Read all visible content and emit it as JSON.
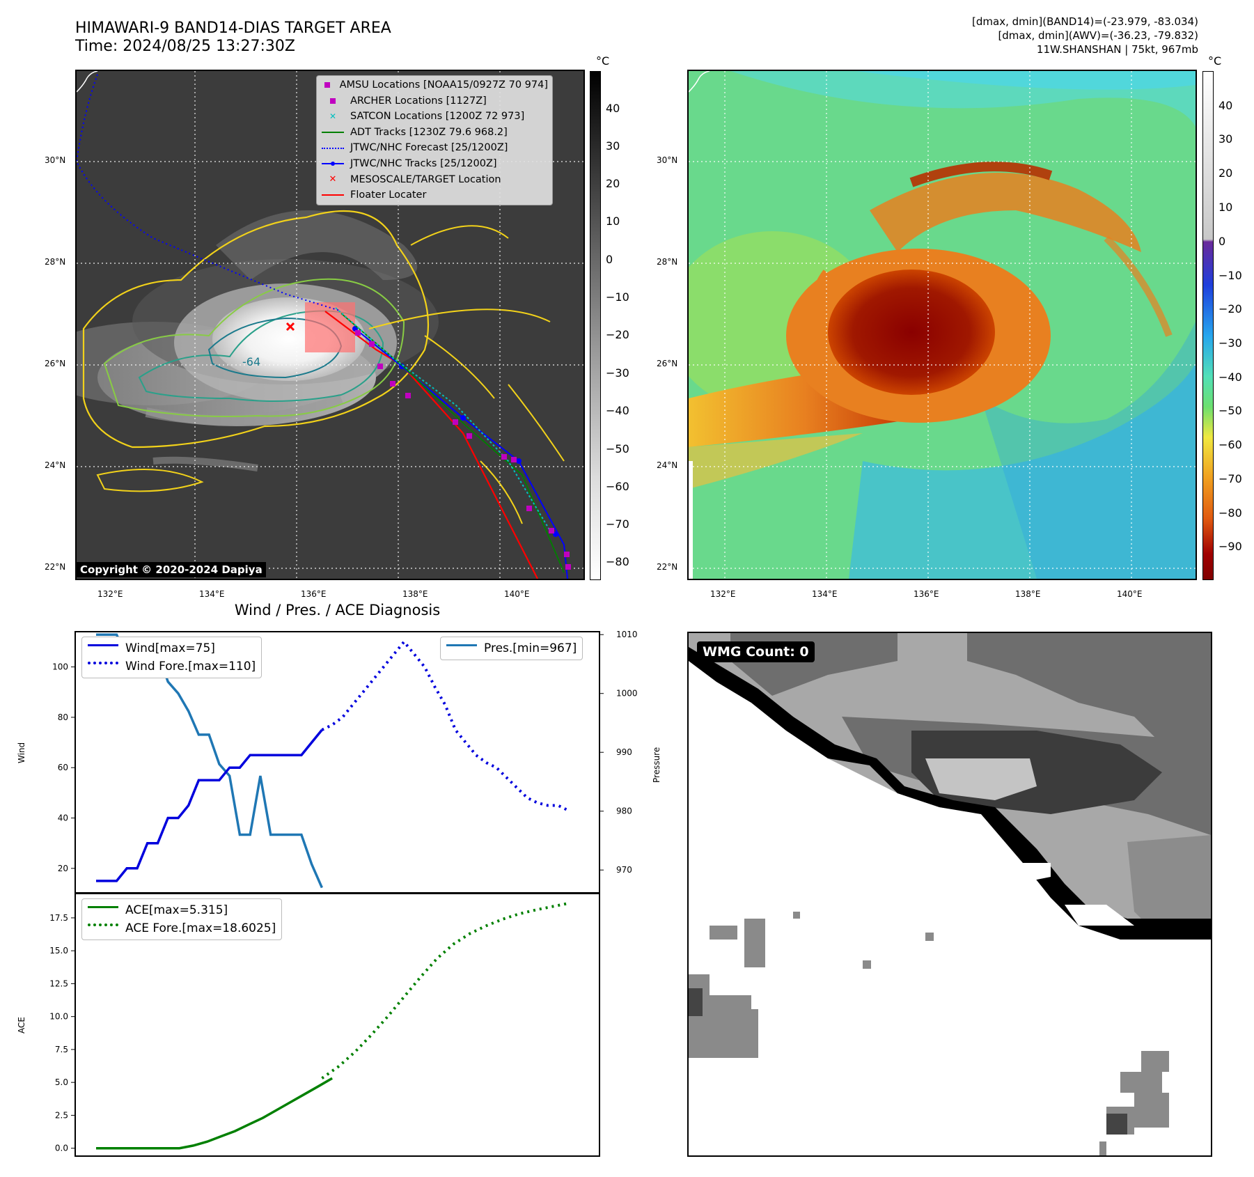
{
  "header": {
    "title_line1": "HIMAWARI-9 BAND14-DIAS TARGET AREA",
    "title_line2": "Time: 2024/08/25 13:27:30Z",
    "right_line1": "[dmax, dmin](BAND14)=(-23.979, -83.034)",
    "right_line2": "[dmax, dmin](AWV)=(-36.23, -79.832)",
    "right_line3": "11W.SHANSHAN | 75kt, 967mb"
  },
  "map": {
    "lon_labels": [
      "132°E",
      "134°E",
      "136°E",
      "138°E",
      "140°E"
    ],
    "lat_labels": [
      "30°N",
      "28°N",
      "26°N",
      "24°N",
      "22°N"
    ],
    "contour_label": "-64",
    "copyright": "Copyright © 2020-2024 Dapiya",
    "legend": [
      {
        "label": "AMSU Locations [NOAA15/0927Z 70 974]",
        "color": "#c000c0",
        "marker": "square"
      },
      {
        "label": "ARCHER Locations [1127Z]",
        "color": "#c000c0",
        "marker": "square"
      },
      {
        "label": "SATCON Locations [1200Z 72 973]",
        "color": "#00c0c0",
        "marker": "x"
      },
      {
        "label": "ADT Tracks [1230Z 79.6 968.2]",
        "color": "#008000",
        "marker": "line"
      },
      {
        "label": "JTWC/NHC Forecast [25/1200Z]",
        "color": "#0000ff",
        "marker": "dotted"
      },
      {
        "label": "JTWC/NHC Tracks [25/1200Z]",
        "color": "#0000ff",
        "marker": "line-dot"
      },
      {
        "label": "MESOSCALE/TARGET Location",
        "color": "#ff0000",
        "marker": "x"
      },
      {
        "label": "Floater Locater",
        "color": "#ff0000",
        "marker": "line"
      }
    ]
  },
  "colorbar1": {
    "unit": "°C",
    "ticks": [
      "40",
      "30",
      "20",
      "10",
      "0",
      "−10",
      "−20",
      "−30",
      "−40",
      "−50",
      "−60",
      "−70",
      "−80"
    ]
  },
  "colorbar2": {
    "unit": "°C",
    "ticks": [
      "40",
      "30",
      "20",
      "10",
      "0",
      "−10",
      "−20",
      "−30",
      "−40",
      "−50",
      "−60",
      "−70",
      "−80",
      "−90"
    ]
  },
  "wmg": {
    "label": "WMG Count: 0"
  },
  "chart_data": [
    {
      "type": "line",
      "title": "Wind / Pres. / ACE Diagnosis",
      "ylabel": "Wind",
      "y2label": "Pressure",
      "ylim": [
        10,
        114
      ],
      "y2lim": [
        966,
        1010.5
      ],
      "yticks": [
        20,
        40,
        60,
        80,
        100
      ],
      "y2ticks": [
        970,
        980,
        990,
        1000,
        1010
      ],
      "series": [
        {
          "name": "Wind[max=75]",
          "color": "#0000dd",
          "style": "solid",
          "values": [
            15,
            15,
            15,
            20,
            20,
            30,
            30,
            40,
            40,
            45,
            55,
            55,
            55,
            60,
            60,
            65,
            65,
            65,
            65,
            65,
            65,
            70,
            75
          ]
        },
        {
          "name": "Wind Fore.[max=110]",
          "color": "#0000dd",
          "style": "dotted",
          "values": [
            75,
            77,
            80,
            85,
            90,
            95,
            100,
            105,
            110,
            105,
            100,
            92,
            85,
            75,
            70,
            65,
            62,
            60,
            56,
            52,
            48,
            46,
            45,
            45,
            43
          ]
        },
        {
          "name": "Pres.[min=967]",
          "color": "#1f77b4",
          "style": "solid",
          "values": [
            1010,
            1010,
            1010,
            1006,
            1006,
            1007,
            1007,
            1002,
            1000,
            997,
            993,
            993,
            988,
            986,
            976,
            976,
            986,
            976,
            976,
            976,
            976,
            971,
            967
          ]
        }
      ]
    },
    {
      "type": "line",
      "ylabel": "ACE",
      "ylim": [
        -0.6,
        19.4
      ],
      "yticks": [
        "0.0",
        "2.5",
        "5.0",
        "7.5",
        "10.0",
        "12.5",
        "15.0",
        "17.5"
      ],
      "series": [
        {
          "name": "ACE[max=5.315]",
          "color": "#008000",
          "style": "solid",
          "values": [
            0,
            0,
            0,
            0,
            0,
            0,
            0,
            0.2,
            0.5,
            0.9,
            1.3,
            1.8,
            2.3,
            2.9,
            3.5,
            4.1,
            4.7,
            5.315
          ]
        },
        {
          "name": "ACE Fore.[max=18.6025]",
          "color": "#008000",
          "style": "dotted",
          "values": [
            5.315,
            6.2,
            7.3,
            8.6,
            10.0,
            11.5,
            13.0,
            14.4,
            15.5,
            16.3,
            16.9,
            17.4,
            17.8,
            18.1,
            18.35,
            18.6025
          ]
        }
      ]
    }
  ]
}
